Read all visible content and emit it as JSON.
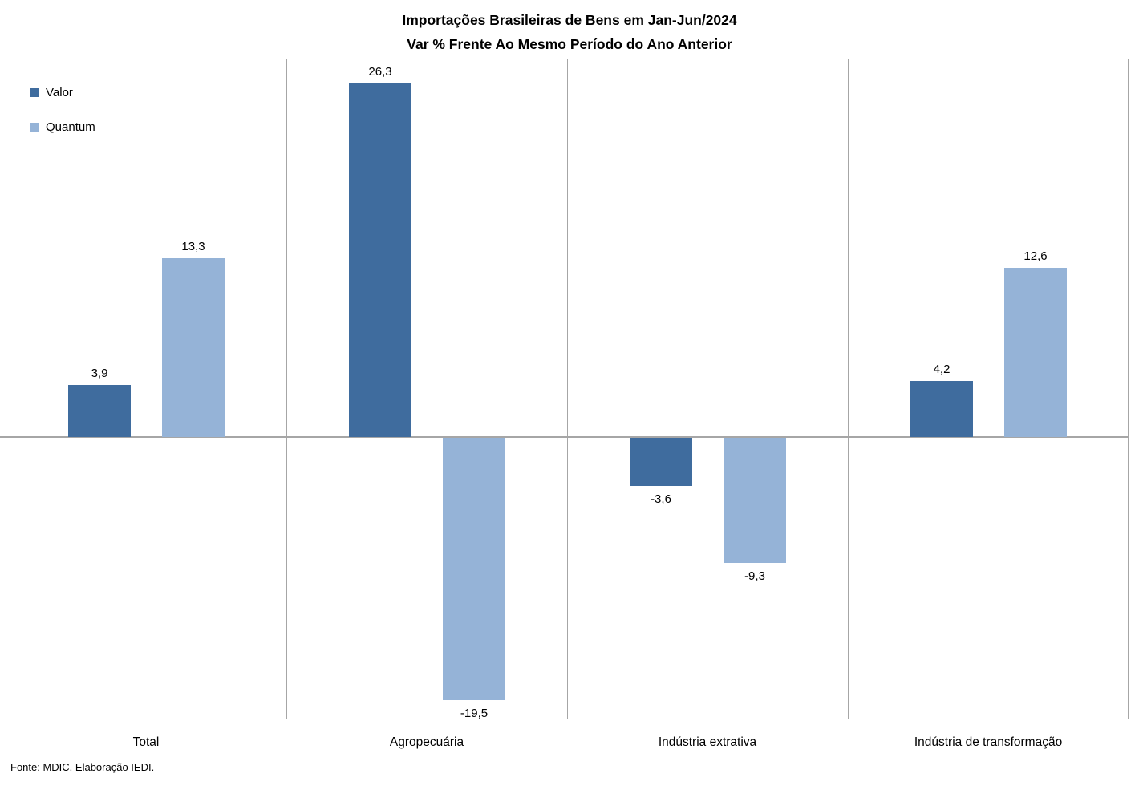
{
  "chart_data": {
    "type": "bar",
    "title": "Importações Brasileiras de Bens em Jan-Jun/2024",
    "subtitle": "Var % Frente Ao Mesmo Período do Ano Anterior",
    "categories": [
      "Total",
      "Agropecuária",
      "Indústria extrativa",
      "Indústria de transformação"
    ],
    "series": [
      {
        "name": "Valor",
        "color": "#3F6C9E",
        "values": [
          3.9,
          26.3,
          -3.6,
          4.2
        ],
        "labels": [
          "3,9",
          "26,3",
          "-3,6",
          "4,2"
        ]
      },
      {
        "name": "Quantum",
        "color": "#95B3D7",
        "values": [
          13.3,
          -19.5,
          -9.3,
          12.6
        ],
        "labels": [
          "13,3",
          "-19,5",
          "-9,3",
          "12,6"
        ]
      }
    ],
    "ylim": [
      -21,
      28.1
    ],
    "decimal_separator": ",",
    "grid": "vertical category separators and zero axis line only",
    "gridline_color": "#A6A6A6",
    "legend_position": "top-left inside plot"
  },
  "source_note": "Fonte: MDIC. Elaboração IEDI."
}
